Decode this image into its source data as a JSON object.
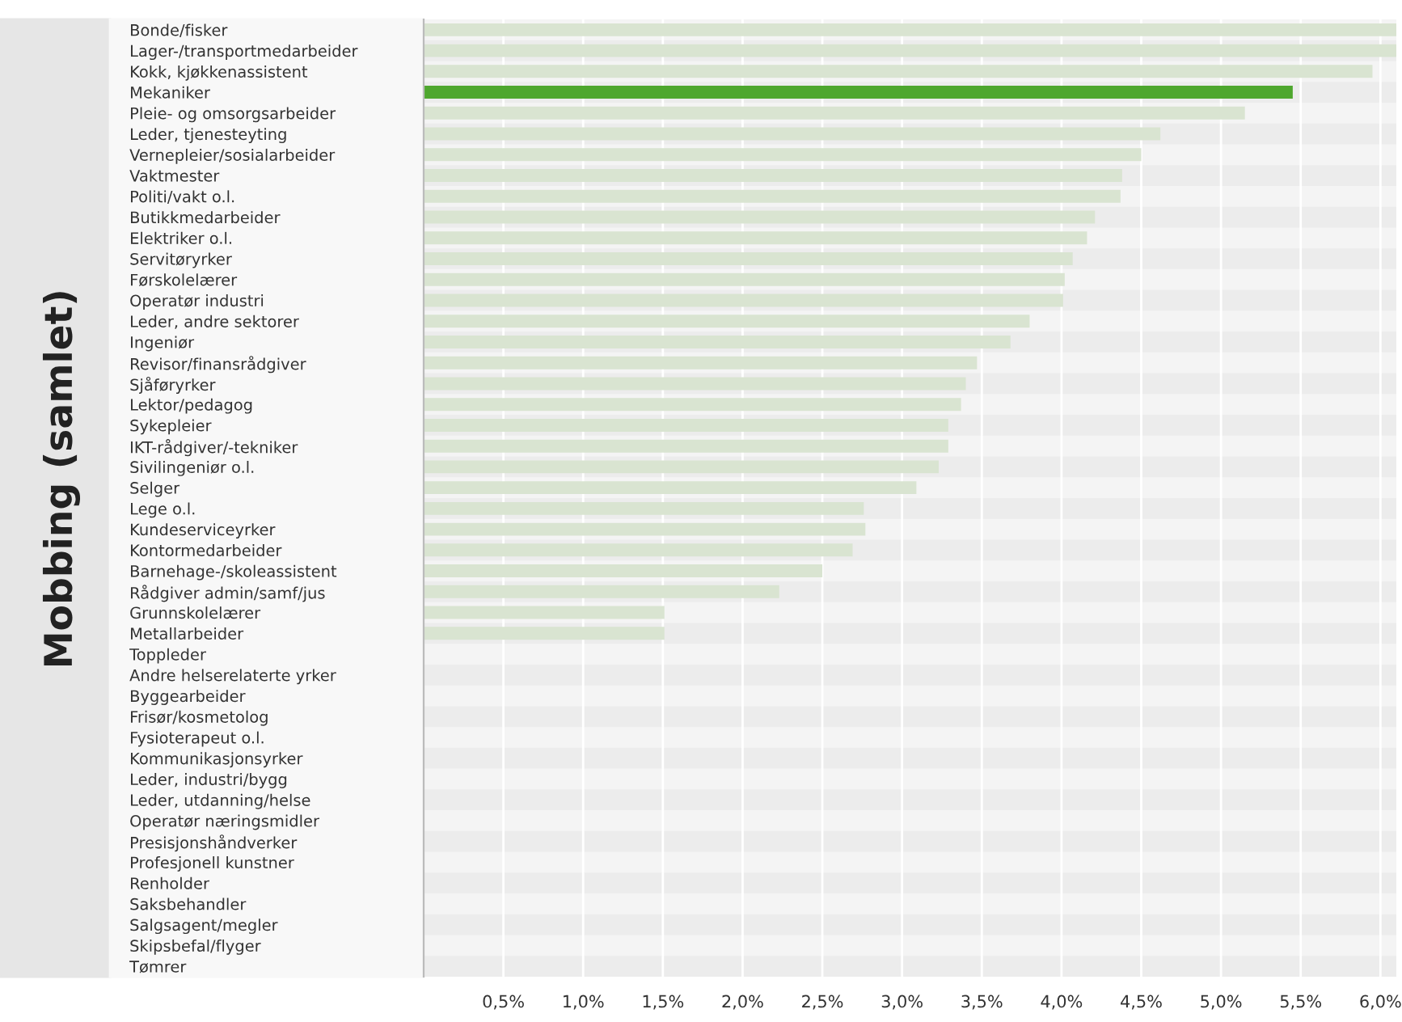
{
  "chart_data": {
    "type": "bar",
    "orientation": "horizontal",
    "ylabel": "Mobbing (samlet)",
    "categories": [
      "Bonde/fisker",
      "Lager-/transportmedarbeider",
      "Kokk, kjøkkenassistent",
      "Mekaniker",
      "Pleie- og omsorgsarbeider",
      "Leder, tjenesteyting",
      "Vernepleier/sosialarbeider",
      "Vaktmester",
      "Politi/vakt o.l.",
      "Butikkmedarbeider",
      "Elektriker o.l.",
      "Servitøryrker",
      "Førskolelærer",
      "Operatør industri",
      "Leder, andre sektorer",
      "Ingeniør",
      "Revisor/finansrådgiver",
      "Sjåføryrker",
      "Lektor/pedagog",
      "Sykepleier",
      "IKT-rådgiver/-tekniker",
      "Sivilingeniør o.l.",
      "Selger",
      "Lege o.l.",
      "Kundeserviceyrker",
      "Kontormedarbeider",
      "Barnehage-/skoleassistent",
      "Rådgiver admin/samf/jus",
      "Grunnskolelærer",
      "Metallarbeider",
      "Toppleder",
      "Andre helserelaterte yrker",
      "Byggearbeider",
      "Frisør/kosmetolog",
      "Fysioterapeut o.l.",
      "Kommunikasjonsyrker",
      "Leder, industri/bygg",
      "Leder, utdanning/helse",
      "Operatør næringsmidler",
      "Presisjonshåndverker",
      "Profesjonell kunstner",
      "Renholder",
      "Saksbehandler",
      "Salgsagent/megler",
      "Skipsbefal/flyger",
      "Tømrer"
    ],
    "values": [
      6.1,
      6.1,
      5.95,
      5.45,
      5.15,
      4.62,
      4.5,
      4.38,
      4.37,
      4.21,
      4.16,
      4.07,
      4.02,
      4.01,
      3.8,
      3.68,
      3.47,
      3.4,
      3.37,
      3.29,
      3.29,
      3.23,
      3.09,
      2.76,
      2.77,
      2.69,
      2.5,
      2.23,
      1.51,
      1.51,
      0,
      0,
      0,
      0,
      0,
      0,
      0,
      0,
      0,
      0,
      0,
      0,
      0,
      0,
      0,
      0
    ],
    "colors": [
      "#d9e4d1",
      "#d9e4d1",
      "#d9e4d1",
      "#4ea72e",
      "#d9e4d1",
      "#d9e4d1",
      "#d9e4d1",
      "#d9e4d1",
      "#d9e4d1",
      "#d9e4d1",
      "#d9e4d1",
      "#d9e4d1",
      "#d9e4d1",
      "#d9e4d1",
      "#d9e4d1",
      "#d9e4d1",
      "#d9e4d1",
      "#d9e4d1",
      "#d9e4d1",
      "#d9e4d1",
      "#d9e4d1",
      "#d9e4d1",
      "#d9e4d1",
      "#d9e4d1",
      "#d9e4d1",
      "#d9e4d1",
      "#d9e4d1",
      "#d9e4d1",
      "#d9e4d1",
      "#d9e4d1",
      "#d9e4d1",
      "#d9e4d1",
      "#d9e4d1",
      "#d9e4d1",
      "#d9e4d1",
      "#d9e4d1",
      "#d9e4d1",
      "#d9e4d1",
      "#d9e4d1",
      "#d9e4d1",
      "#d9e4d1",
      "#d9e4d1",
      "#d9e4d1",
      "#d9e4d1",
      "#d9e4d1",
      "#d9e4d1"
    ],
    "xlim": [
      0,
      6.1
    ],
    "xticks": [
      {
        "value": 0.5,
        "label": "0,5%"
      },
      {
        "value": 1.0,
        "label": "1,0%"
      },
      {
        "value": 1.5,
        "label": "1,5%"
      },
      {
        "value": 2.0,
        "label": "2,0%"
      },
      {
        "value": 2.5,
        "label": "2,5%"
      },
      {
        "value": 3.0,
        "label": "3,0%"
      },
      {
        "value": 3.5,
        "label": "3,5%"
      },
      {
        "value": 4.0,
        "label": "4,0%"
      },
      {
        "value": 4.5,
        "label": "4,5%"
      },
      {
        "value": 5.0,
        "label": "5,0%"
      },
      {
        "value": 5.5,
        "label": "5,5%"
      },
      {
        "value": 6.0,
        "label": "6,0%"
      }
    ],
    "grid": "x",
    "legend": false
  }
}
